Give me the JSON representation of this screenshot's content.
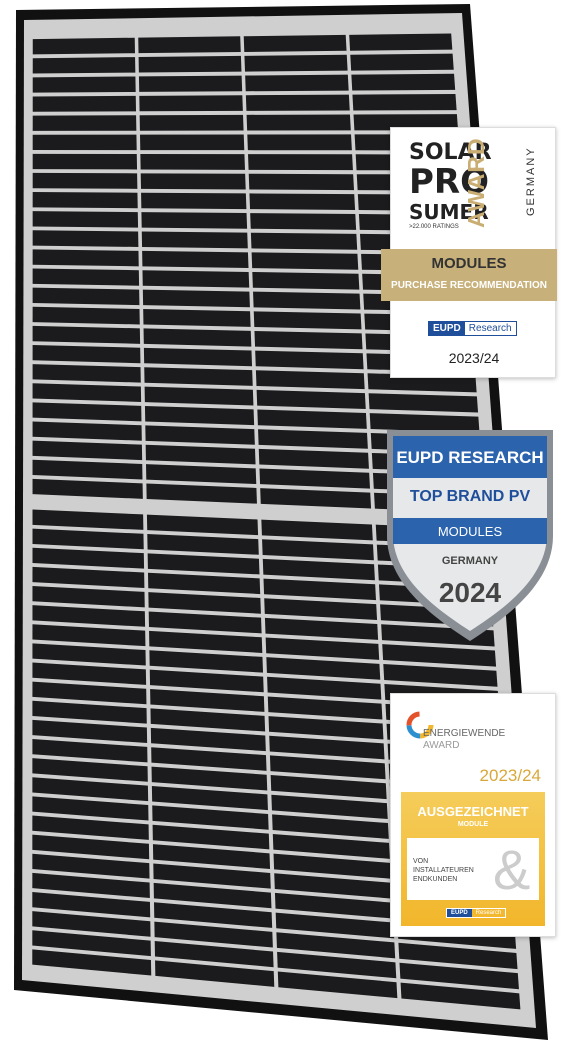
{
  "prosumer_badge": {
    "solar": "SOLAR",
    "pro": "PRO",
    "sumer": "SUMER",
    "award": "AWARD",
    "country": "GERMANY",
    "ratings": ">22.000 RATINGS",
    "category": "MODULES",
    "recommendation": "PURCHASE RECOMMENDATION",
    "logo_eupd": "EUPD",
    "logo_research": "Research",
    "year": "2023/24"
  },
  "shield_badge": {
    "title": "EUPD RESEARCH",
    "brand": "TOP BRAND PV",
    "category": "MODULES",
    "country": "GERMANY",
    "year": "2024"
  },
  "energiewende_badge": {
    "line1": "ENERGIEWENDE",
    "line2": "AWARD",
    "year": "2023/24",
    "status": "AUSGEZEICHNET",
    "category": "MODULE",
    "from1": "VON",
    "from2": "INSTALLATEUREN",
    "from3": "ENDKUNDEN",
    "ampersand": "&",
    "logo_eupd": "EUPD",
    "logo_research": "Research"
  }
}
